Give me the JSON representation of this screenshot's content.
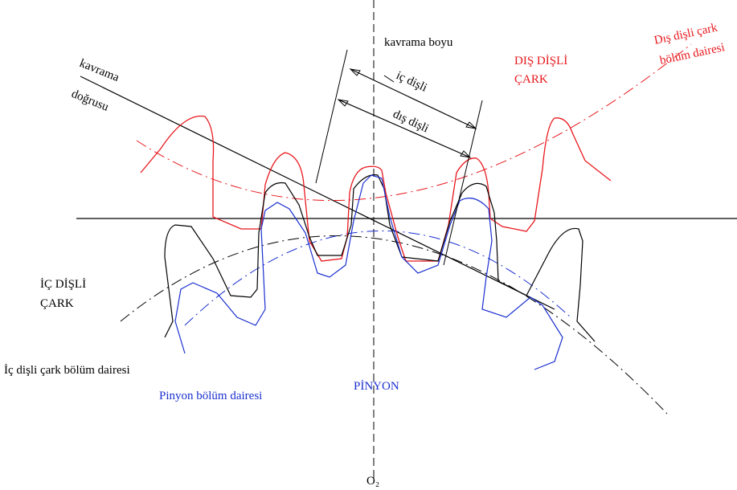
{
  "labels": {
    "kavrama_boyu": "kavrama boyu",
    "kavrama_dogrusu": [
      "kavrama",
      "doğrusu"
    ],
    "ic_disli": "iç dişli",
    "dis_disli": "dış dişli",
    "dis_disli_cark": [
      "DIŞ DİŞLİ",
      "ÇARK"
    ],
    "dis_disli_cark_bolum_dairesi": [
      "Dış dişli çark",
      "bölüm dairesi"
    ],
    "ic_disli_cark": [
      "İÇ DİŞLİ",
      "ÇARK"
    ],
    "ic_disli_cark_bolum_dairesi": "İç dişli çark bölüm dairesi",
    "pinyon_bolum_dairesi": "Pinyon bölüm dairesi",
    "pinyon": "PİNYON",
    "center": "O₂"
  }
}
